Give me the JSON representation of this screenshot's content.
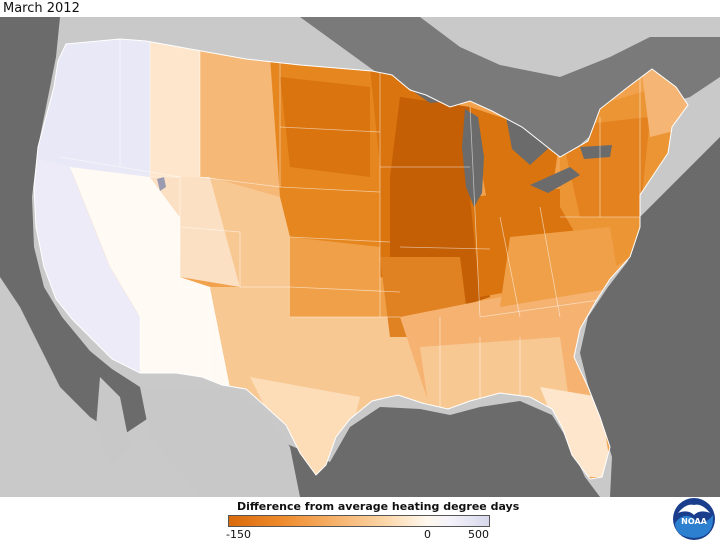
{
  "title": "March 2012",
  "legend": {
    "title": "Difference from average heating degree days",
    "tick_labels": [
      "-150",
      "0",
      "500"
    ],
    "scale_min": -150,
    "scale_zero": 0,
    "scale_max": 500,
    "colors": {
      "min": "#d96a0b",
      "mid": "#fff8ee",
      "max": "#d7d7ec"
    }
  },
  "logo": {
    "text": "NOAA"
  },
  "colors": {
    "land_background": "#c8c8c8",
    "water": "#6b6b6b",
    "strongest_warm": "#c45f05",
    "strong_warm": "#e07b18",
    "moderate_warm": "#f2a24c",
    "light_warm": "#f8c893",
    "pale_warm": "#fde6cc",
    "near_normal": "#fffaf3",
    "cool": "#e9e8f6"
  }
}
